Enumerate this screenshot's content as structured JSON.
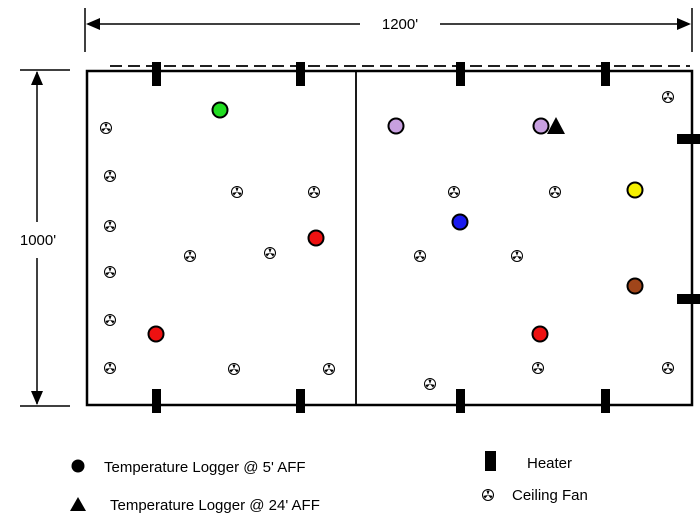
{
  "dimensions": {
    "width_label": "1200'",
    "height_label": "1000'"
  },
  "legend": {
    "logger_5ft": "Temperature Logger @ 5' AFF",
    "logger_24ft": "Temperature Logger @ 24' AFF",
    "heater": "Heater",
    "ceiling_fan": "Ceiling Fan"
  },
  "colors": {
    "green": "#22dd22",
    "red": "#ee1111",
    "lavender": "#c8a0e0",
    "blue": "#1a1aee",
    "yellow": "#f5f000",
    "brown": "#a0451a"
  }
}
